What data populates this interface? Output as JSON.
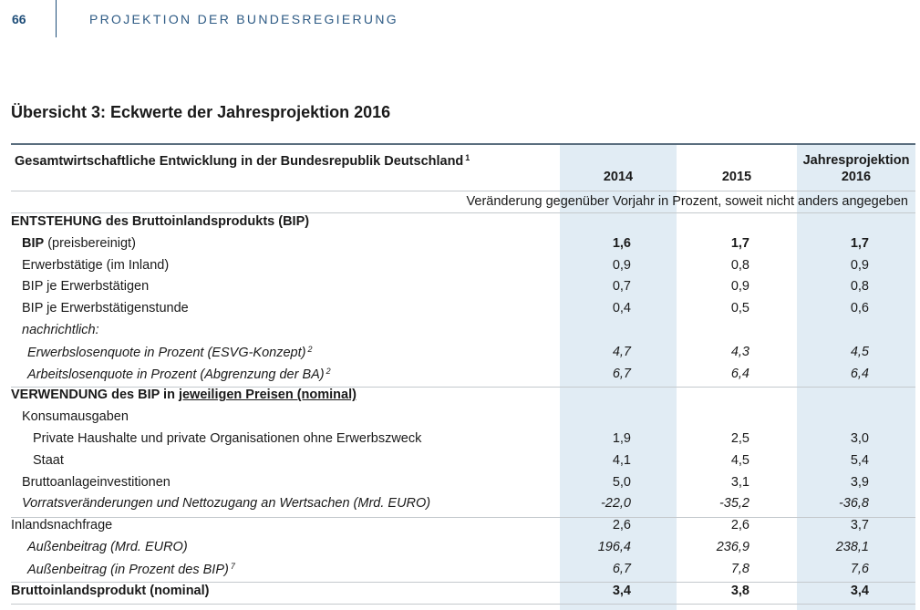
{
  "header": {
    "page_number": "66",
    "running_title": "PROJEKTION DER BUNDESREGIERUNG"
  },
  "title": "Übersicht 3: Eckwerte der Jahresprojektion 2016",
  "table": {
    "caption": [
      "Gesamtwirtschaftliche Entwicklung in der Bundesrepublik Deutschland",
      "1"
    ],
    "columns": [
      [
        "2014"
      ],
      [
        "2015"
      ],
      [
        "Jahresprojektion",
        "2016"
      ]
    ],
    "unit_note": "Veränderung gegenüber Vorjahr in Prozent, soweit nicht anders angegeben",
    "rows": [
      {
        "label": [
          "ENTSTEHUNG des Bruttoinlandsprodukts (BIP)"
        ],
        "values": []
      },
      {
        "label": [
          "BIP",
          " (preisbereinigt)"
        ],
        "values": [
          "1,6",
          "1,7",
          "1,7"
        ]
      },
      {
        "label": [
          "Erwerbstätige (im Inland)"
        ],
        "values": [
          "0,9",
          "0,8",
          "0,9"
        ]
      },
      {
        "label": [
          "BIP je Erwerbstätigen"
        ],
        "values": [
          "0,7",
          "0,9",
          "0,8"
        ]
      },
      {
        "label": [
          "BIP je Erwerbstätigenstunde"
        ],
        "values": [
          "0,4",
          "0,5",
          "0,6"
        ]
      },
      {
        "label": [
          "nachrichtlich:"
        ],
        "values": []
      },
      {
        "label": [
          "Erwerbslosenquote in Prozent (ESVG-Konzept)",
          "2"
        ],
        "values": [
          "4,7",
          "4,3",
          "4,5"
        ]
      },
      {
        "label": [
          "Arbeitslosenquote in Prozent (Abgrenzung der BA)",
          "2"
        ],
        "values": [
          "6,7",
          "6,4",
          "6,4"
        ]
      },
      {
        "label": [
          "VERWENDUNG des BIP in ",
          "jeweiligen Preisen (nominal)"
        ],
        "values": []
      },
      {
        "label": [
          "Konsumausgaben"
        ],
        "values": []
      },
      {
        "label": [
          "Private Haushalte und private Organisationen ohne Erwerbszweck"
        ],
        "values": [
          "1,9",
          "2,5",
          "3,0"
        ]
      },
      {
        "label": [
          "Staat"
        ],
        "values": [
          "4,1",
          "4,5",
          "5,4"
        ]
      },
      {
        "label": [
          "Bruttoanlageinvestitionen"
        ],
        "values": [
          "5,0",
          "3,1",
          "3,9"
        ]
      },
      {
        "label": [
          "Vorratsveränderungen und Nettozugang an Wertsachen (Mrd. EURO)"
        ],
        "values": [
          "-22,0",
          "-35,2",
          "-36,8"
        ]
      },
      {
        "label": [
          "Inlandsnachfrage"
        ],
        "values": [
          "2,6",
          "2,6",
          "3,7"
        ]
      },
      {
        "label": [
          "Außenbeitrag (Mrd. EURO)"
        ],
        "values": [
          "196,4",
          "236,9",
          "238,1"
        ]
      },
      {
        "label": [
          "Außenbeitrag (in Prozent des BIP)",
          "7"
        ],
        "values": [
          "6,7",
          "7,8",
          "7,6"
        ]
      },
      {
        "label": [
          "Bruttoinlandsprodukt (nominal)"
        ],
        "values": [
          "3,4",
          "3,8",
          "3,4"
        ]
      }
    ]
  }
}
